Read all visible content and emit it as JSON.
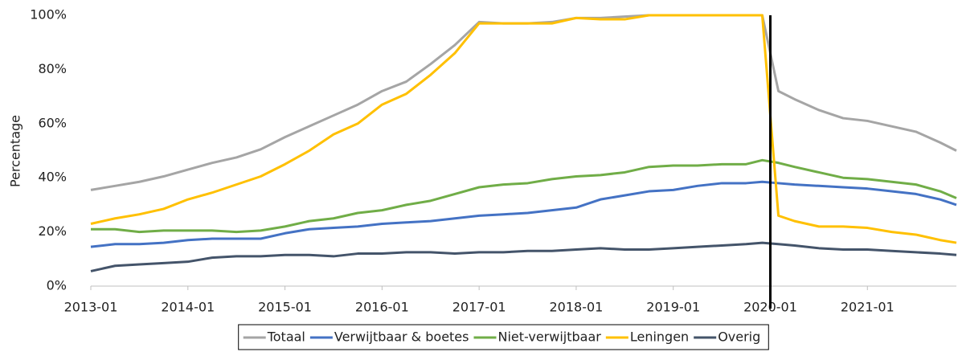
{
  "chart_data": {
    "type": "line",
    "y_label": "Percentage",
    "x": [
      "2013-01",
      "2013-04",
      "2013-07",
      "2013-10",
      "2014-01",
      "2014-04",
      "2014-07",
      "2014-10",
      "2015-01",
      "2015-04",
      "2015-07",
      "2015-10",
      "2016-01",
      "2016-04",
      "2016-07",
      "2016-10",
      "2017-01",
      "2017-04",
      "2017-07",
      "2017-10",
      "2018-01",
      "2018-04",
      "2018-07",
      "2018-10",
      "2019-01",
      "2019-04",
      "2019-07",
      "2019-10",
      "2019-12",
      "2020-02",
      "2020-04",
      "2020-07",
      "2020-10",
      "2021-01",
      "2021-04",
      "2021-07",
      "2021-10",
      "2021-12"
    ],
    "series": [
      {
        "name": "Totaal",
        "color": "#a5a5a5",
        "values": [
          35.5,
          37,
          38.5,
          40.5,
          43,
          45.5,
          47.5,
          50.5,
          55,
          59,
          63,
          67,
          72,
          75.5,
          82,
          89,
          97.5,
          97,
          97,
          97.5,
          99,
          99,
          99.5,
          100,
          100,
          100,
          100,
          100,
          100,
          72,
          69,
          65,
          62,
          61,
          59,
          57,
          53,
          50
        ]
      },
      {
        "name": "Verwijtbaar & boetes",
        "color": "#4472c4",
        "values": [
          14.5,
          15.5,
          15.5,
          16,
          17,
          17.5,
          17.5,
          17.5,
          19.5,
          21,
          21.5,
          22,
          23,
          23.5,
          24,
          25,
          26,
          26.5,
          27,
          28,
          29,
          32,
          33.5,
          35,
          35.5,
          37,
          38,
          38,
          38.5,
          38,
          37.5,
          37,
          36.5,
          36,
          35,
          34,
          32,
          30
        ]
      },
      {
        "name": "Niet-verwijtbaar",
        "color": "#70ad47",
        "values": [
          21,
          21,
          20,
          20.5,
          20.5,
          20.5,
          20,
          20.5,
          22,
          24,
          25,
          27,
          28,
          30,
          31.5,
          34,
          36.5,
          37.5,
          38,
          39.5,
          40.5,
          41,
          42,
          44,
          44.5,
          44.5,
          45,
          45,
          46.5,
          45.5,
          44,
          42,
          40,
          39.5,
          38.5,
          37.5,
          35,
          32.5
        ]
      },
      {
        "name": "Leningen",
        "color": "#ffc000",
        "values": [
          23,
          25,
          26.5,
          28.5,
          32,
          34.5,
          37.5,
          40.5,
          45,
          50,
          56,
          60,
          67,
          71,
          78,
          86,
          97,
          97,
          97,
          97,
          99,
          98.5,
          98.5,
          100,
          100,
          100,
          100,
          100,
          100,
          26,
          24,
          22,
          22,
          21.5,
          20,
          19,
          17,
          16
        ]
      },
      {
        "name": "Overig",
        "color": "#44546a",
        "values": [
          5.5,
          7.5,
          8,
          8.5,
          9,
          10.5,
          11,
          11,
          11.5,
          11.5,
          11,
          12,
          12,
          12.5,
          12.5,
          12,
          12.5,
          12.5,
          13,
          13,
          13.5,
          14,
          13.5,
          13.5,
          14,
          14.5,
          15,
          15.5,
          16,
          15.5,
          15,
          14,
          13.5,
          13.5,
          13,
          12.5,
          12,
          11.5
        ]
      }
    ],
    "xlim": [
      "2013-01",
      "2021-12"
    ],
    "xticks": [
      "2013-01",
      "2014-01",
      "2015-01",
      "2016-01",
      "2017-01",
      "2018-01",
      "2019-01",
      "2020-01",
      "2021-01"
    ],
    "ylim": [
      0,
      100
    ],
    "yticks": [
      {
        "value": 0,
        "label": "0%"
      },
      {
        "value": 20,
        "label": "20%"
      },
      {
        "value": 40,
        "label": "40%"
      },
      {
        "value": 60,
        "label": "60%"
      },
      {
        "value": 80,
        "label": "80%"
      },
      {
        "value": 100,
        "label": "100%"
      }
    ],
    "vline": "2020-01",
    "legend": "bottom"
  }
}
